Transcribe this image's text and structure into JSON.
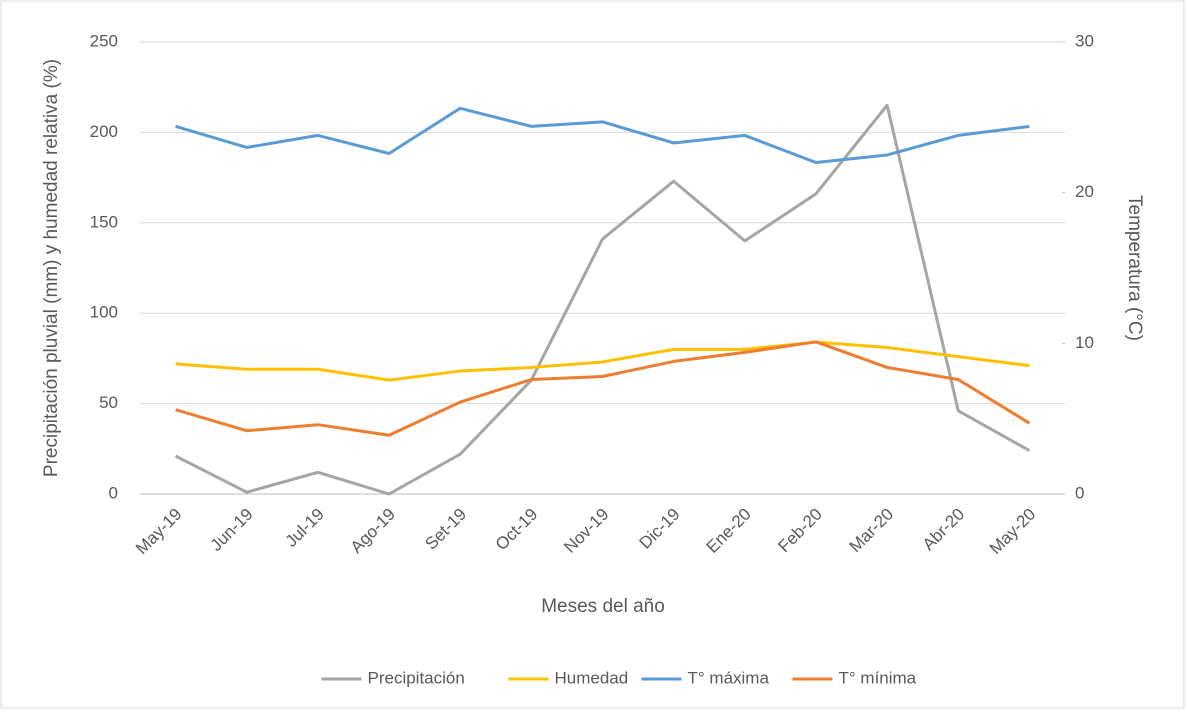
{
  "chart_data": {
    "type": "line",
    "categories": [
      "May-19",
      "Jun-19",
      "Jul-19",
      "Ago-19",
      "Set-19",
      "Oct-19",
      "Nov-19",
      "Dic-19",
      "Ene-20",
      "Feb-20",
      "Mar-20",
      "Abr-20",
      "May-20"
    ],
    "series": [
      {
        "name": "Precipitación",
        "color": "#a5a5a5",
        "values": [
          21,
          1,
          12,
          0,
          22,
          63,
          141,
          173,
          140,
          166,
          215,
          46,
          24
        ]
      },
      {
        "name": "Humedad",
        "color": "#ffc000",
        "values": [
          72,
          69,
          69,
          63,
          68,
          70,
          73,
          80,
          80,
          84,
          81,
          76,
          71
        ]
      },
      {
        "name": "T° máxima",
        "color": "#5b9bd5",
        "axis": "y2",
        "values": [
          24.4,
          23.0,
          23.8,
          22.6,
          25.6,
          24.4,
          24.7,
          23.3,
          23.8,
          22.0,
          22.5,
          23.8,
          24.4
        ]
      },
      {
        "name": "T° mínima",
        "color": "#ed7d31",
        "axis": "y2",
        "values": [
          5.6,
          4.2,
          4.6,
          3.9,
          6.1,
          7.6,
          7.8,
          8.8,
          9.4,
          10.1,
          8.4,
          7.6,
          4.7
        ]
      }
    ],
    "ylabel": "Precipitación pluvial (mm) y humedad relativa (%)",
    "y2label": "Temperatura (°C)",
    "xlabel": "Meses del año",
    "ylim": [
      0,
      250
    ],
    "yticks": [
      0,
      50,
      100,
      150,
      200,
      250
    ],
    "y2lim": [
      0,
      30
    ],
    "y2ticks": [
      0,
      10,
      20,
      30
    ],
    "grid": true,
    "legend": "bottom"
  }
}
